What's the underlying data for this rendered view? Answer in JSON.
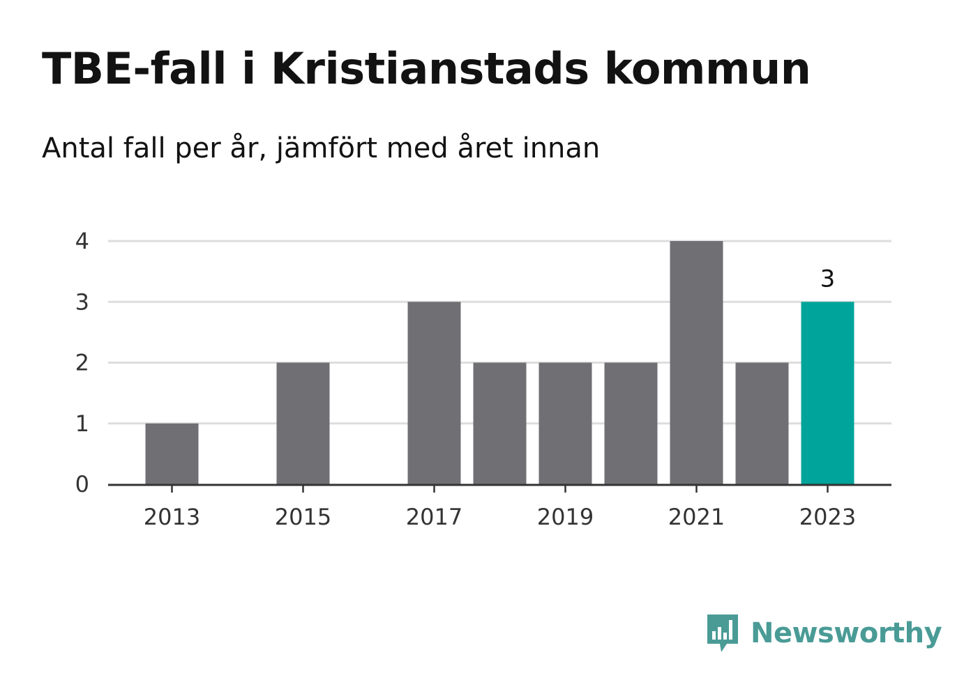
{
  "header": {
    "title": "TBE-fall i Kristianstads kommun",
    "subtitle": "Antal fall per år, jämfört med året innan"
  },
  "chart_data": {
    "type": "bar",
    "title": "TBE-fall i Kristianstads kommun",
    "subtitle": "Antal fall per år, jämfört med året innan",
    "categories": [
      2013,
      2014,
      2015,
      2016,
      2017,
      2018,
      2019,
      2020,
      2021,
      2022,
      2023
    ],
    "values": [
      1,
      0,
      2,
      0,
      3,
      2,
      2,
      2,
      4,
      2,
      3
    ],
    "x_tick_labels": [
      "2013",
      "2015",
      "2017",
      "2019",
      "2021",
      "2023"
    ],
    "y_ticks": [
      0,
      1,
      2,
      3,
      4
    ],
    "ylim": [
      0,
      4
    ],
    "xlabel": "",
    "ylabel": "",
    "grid": true,
    "highlight": {
      "category": 2023,
      "label": "3"
    },
    "colors": {
      "bar": "#706f74",
      "highlight": "#00a49a",
      "grid": "#dddddd",
      "axis": "#333333"
    }
  },
  "footer": {
    "brand": "Newsworthy",
    "brand_color": "#4a9b96",
    "icon": "newsworthy-logo-icon"
  }
}
